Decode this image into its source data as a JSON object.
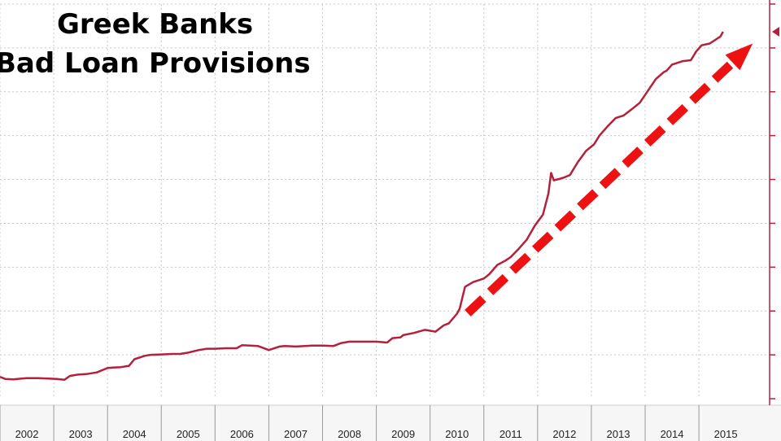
{
  "chart_data": {
    "type": "line",
    "title": [
      "Greek Banks",
      "Bad Loan Provisions"
    ],
    "xlabel": "",
    "ylabel": "",
    "x_tick_labels": [
      "2002",
      "2003",
      "2004",
      "2005",
      "2006",
      "2007",
      "2008",
      "2009",
      "2010",
      "2011",
      "2012",
      "2013",
      "2014",
      "2015"
    ],
    "xlim": [
      2001.5,
      2015.8
    ],
    "ylim": [
      0,
      9
    ],
    "grid": true,
    "colors": {
      "line": "#b5203a",
      "arrow": "#ee1111",
      "grid": "#c8c8c8",
      "axis": "#b5203a",
      "xaxis_band": "#f6f6f6"
    },
    "series": [
      {
        "x": [
          2001.5,
          2001.6,
          2001.75,
          2001.9,
          2002.0,
          2002.2,
          2002.4,
          2002.55,
          2002.7,
          2002.8,
          2002.95,
          2003.1,
          2003.3,
          2003.5,
          2003.6,
          2003.75,
          2003.9,
          2004.0,
          2004.2,
          2004.3,
          2004.5,
          2004.7,
          2004.85,
          2005.0,
          2005.2,
          2005.35,
          2005.5,
          2005.7,
          2005.9,
          2006.0,
          2006.3,
          2006.5,
          2006.7,
          2006.8,
          2007.0,
          2007.3,
          2007.5,
          2007.7,
          2007.85,
          2008.0,
          2008.2,
          2008.5,
          2008.7,
          2008.8,
          2008.95,
          2009.0,
          2009.2,
          2009.4,
          2009.6,
          2009.75,
          2009.85,
          2010.0,
          2010.05,
          2010.15,
          2010.3,
          2010.5,
          2010.6,
          2010.75,
          2010.9,
          2011.0,
          2011.15,
          2011.3,
          2011.45,
          2011.6,
          2011.7,
          2011.75,
          2011.8,
          2011.9,
          2012.0,
          2012.1,
          2012.25,
          2012.4,
          2012.55,
          2012.65,
          2012.8,
          2012.95,
          2013.1,
          2013.25,
          2013.4,
          2013.55,
          2013.7,
          2013.85,
          2013.9,
          2014.0,
          2014.2,
          2014.35,
          2014.45,
          2014.55,
          2014.7,
          2014.9,
          2014.95
        ],
        "y": [
          0.5,
          0.45,
          0.44,
          0.46,
          0.47,
          0.47,
          0.46,
          0.45,
          0.43,
          0.52,
          0.55,
          0.56,
          0.6,
          0.7,
          0.71,
          0.72,
          0.75,
          0.9,
          0.98,
          1.0,
          1.01,
          1.02,
          1.02,
          1.05,
          1.11,
          1.14,
          1.14,
          1.15,
          1.15,
          1.22,
          1.2,
          1.11,
          1.19,
          1.2,
          1.19,
          1.21,
          1.21,
          1.2,
          1.27,
          1.3,
          1.3,
          1.3,
          1.28,
          1.38,
          1.4,
          1.45,
          1.5,
          1.57,
          1.53,
          1.67,
          1.72,
          1.94,
          2.05,
          2.55,
          2.66,
          2.74,
          2.84,
          3.05,
          3.15,
          3.23,
          3.42,
          3.63,
          3.95,
          4.2,
          4.68,
          5.15,
          4.98,
          5.01,
          5.05,
          5.1,
          5.4,
          5.65,
          5.8,
          6.0,
          6.21,
          6.4,
          6.46,
          6.6,
          6.75,
          7.02,
          7.29,
          7.45,
          7.48,
          7.62,
          7.7,
          7.72,
          7.92,
          8.06,
          8.1,
          8.26,
          8.37
        ]
      }
    ],
    "arrow": {
      "from": [
        2010.2,
        1.95
      ],
      "to": [
        2015.5,
        8.1
      ]
    }
  }
}
